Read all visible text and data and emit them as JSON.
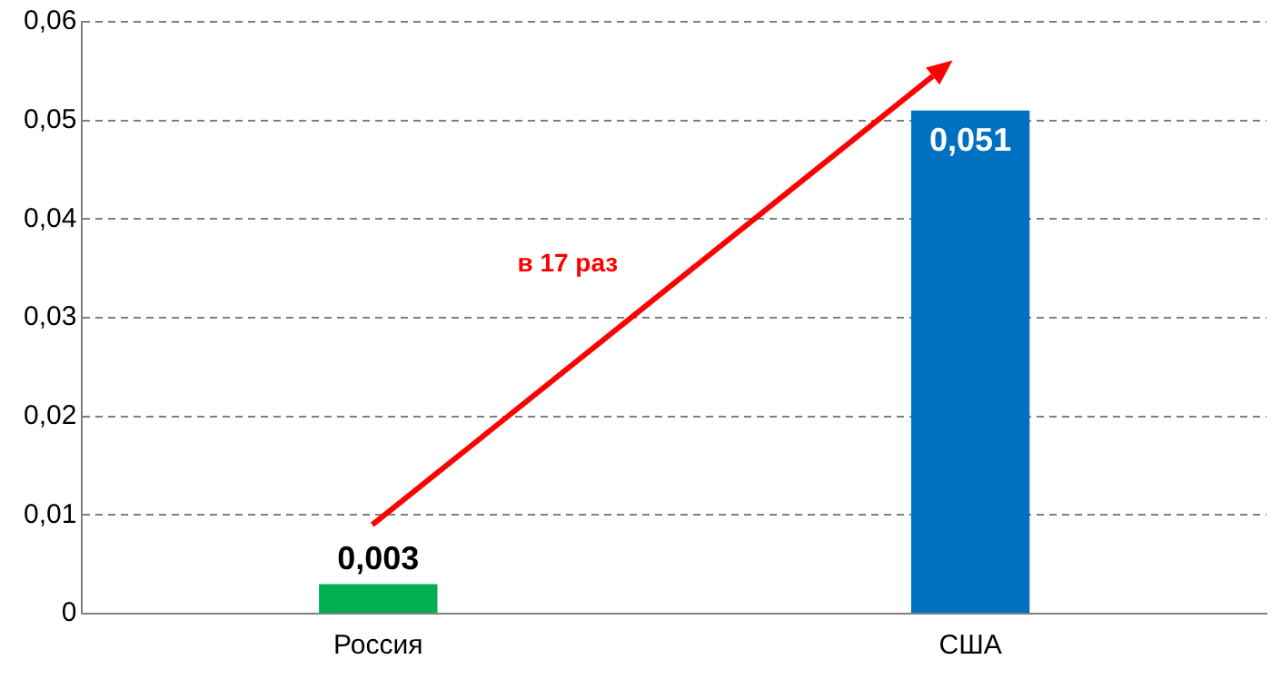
{
  "chart_data": {
    "type": "bar",
    "categories": [
      "Россия",
      "США"
    ],
    "values": [
      0.003,
      0.051
    ],
    "colors": [
      "#00b050",
      "#0070c0"
    ],
    "ylim": [
      0,
      0.06
    ],
    "yticks": [
      {
        "value": 0,
        "label": "0"
      },
      {
        "value": 0.01,
        "label": "0,01"
      },
      {
        "value": 0.02,
        "label": "0,02"
      },
      {
        "value": 0.03,
        "label": "0,03"
      },
      {
        "value": 0.04,
        "label": "0,04"
      },
      {
        "value": 0.05,
        "label": "0,05"
      },
      {
        "value": 0.06,
        "label": "0,06"
      }
    ],
    "grid": "y",
    "legend": false,
    "value_labels": [
      "0,003",
      "0,051"
    ],
    "annotations": [
      "в 17 раз"
    ]
  }
}
